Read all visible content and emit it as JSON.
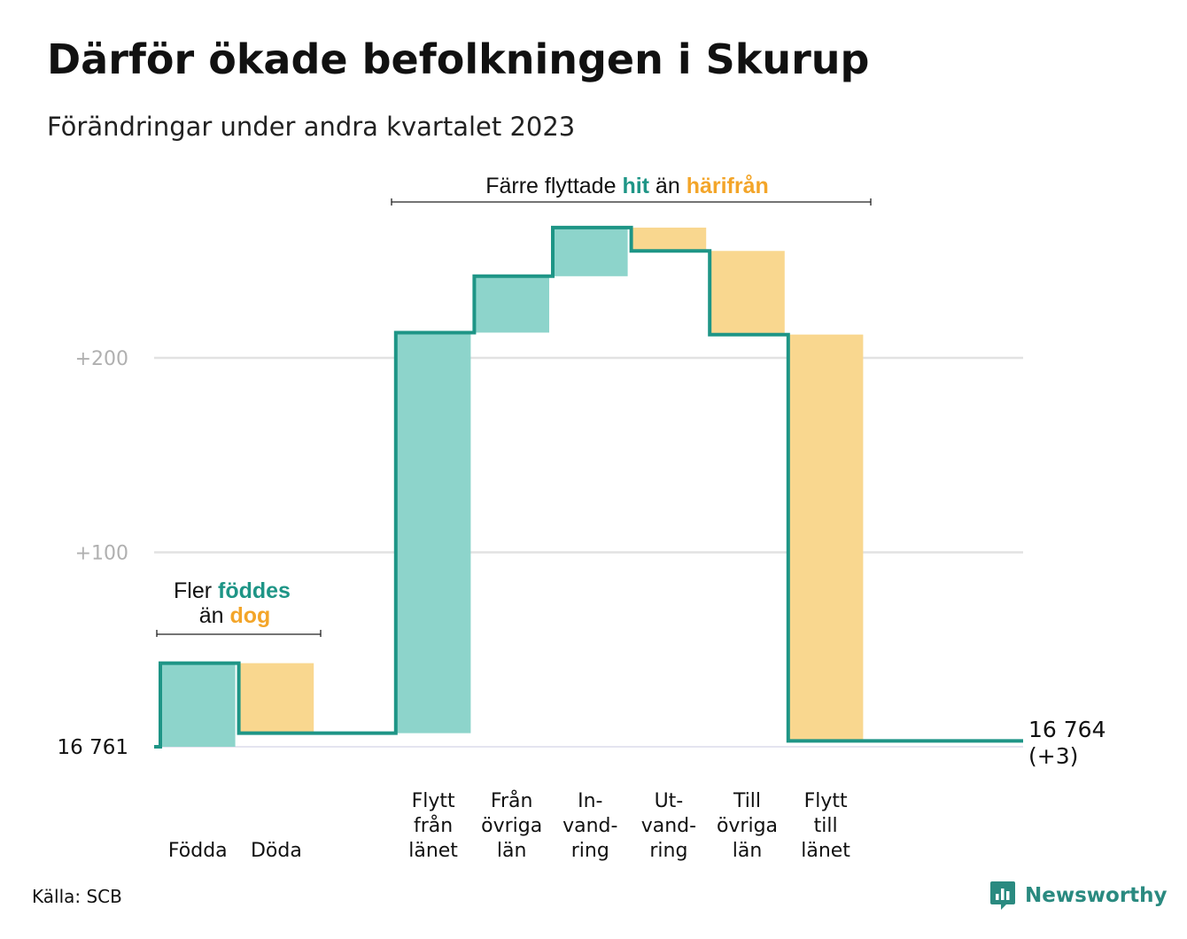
{
  "title": "Därför ökade befolkningen i Skurup",
  "subtitle": "Förändringar under andra kvartalet 2023",
  "source": "Källa: SCB",
  "brand": "Newsworthy",
  "colors": {
    "increase": "#8dd4cb",
    "decrease": "#f9d78f",
    "line": "#1e9586",
    "accent_increase": "#1e9586",
    "accent_decrease": "#f3a529",
    "grid": "#e2e2e2",
    "tick": "#b0b0b0"
  },
  "annotations": {
    "births": {
      "line1_pre": "Fler ",
      "line1_em": "föddes",
      "line2_pre": "än ",
      "line2_em": "dog"
    },
    "migration": {
      "pre": "Färre flyttade ",
      "em1": "hit",
      "mid": " än ",
      "em2": "härifrån"
    }
  },
  "chart_data": {
    "type": "waterfall",
    "baseline": 16761,
    "baseline_label": "16  761",
    "end_value": 16764,
    "end_label_line1": "16 764",
    "end_label_line2": "(+3)",
    "y_ticks": [
      {
        "value": 100,
        "label": "+100"
      },
      {
        "value": 200,
        "label": "+200"
      }
    ],
    "ylim": [
      0,
      270
    ],
    "grid": true,
    "categories": [
      {
        "lines": [
          "Födda"
        ],
        "value": 43,
        "kind": "increase"
      },
      {
        "lines": [
          "Döda"
        ],
        "value": -36,
        "kind": "decrease"
      },
      {
        "lines": [],
        "value": 0,
        "kind": "gap"
      },
      {
        "lines": [
          "Flytt",
          "från",
          "länet"
        ],
        "value": 206,
        "kind": "increase"
      },
      {
        "lines": [
          "Från",
          "övriga",
          "län"
        ],
        "value": 29,
        "kind": "increase"
      },
      {
        "lines": [
          "In-",
          "vand-",
          "ring"
        ],
        "value": 25,
        "kind": "increase"
      },
      {
        "lines": [
          "Ut-",
          "vand-",
          "ring"
        ],
        "value": -12,
        "kind": "decrease"
      },
      {
        "lines": [
          "Till",
          "övriga",
          "län"
        ],
        "value": -43,
        "kind": "decrease"
      },
      {
        "lines": [
          "Flytt",
          "till",
          "länet"
        ],
        "value": -209,
        "kind": "decrease"
      }
    ]
  }
}
